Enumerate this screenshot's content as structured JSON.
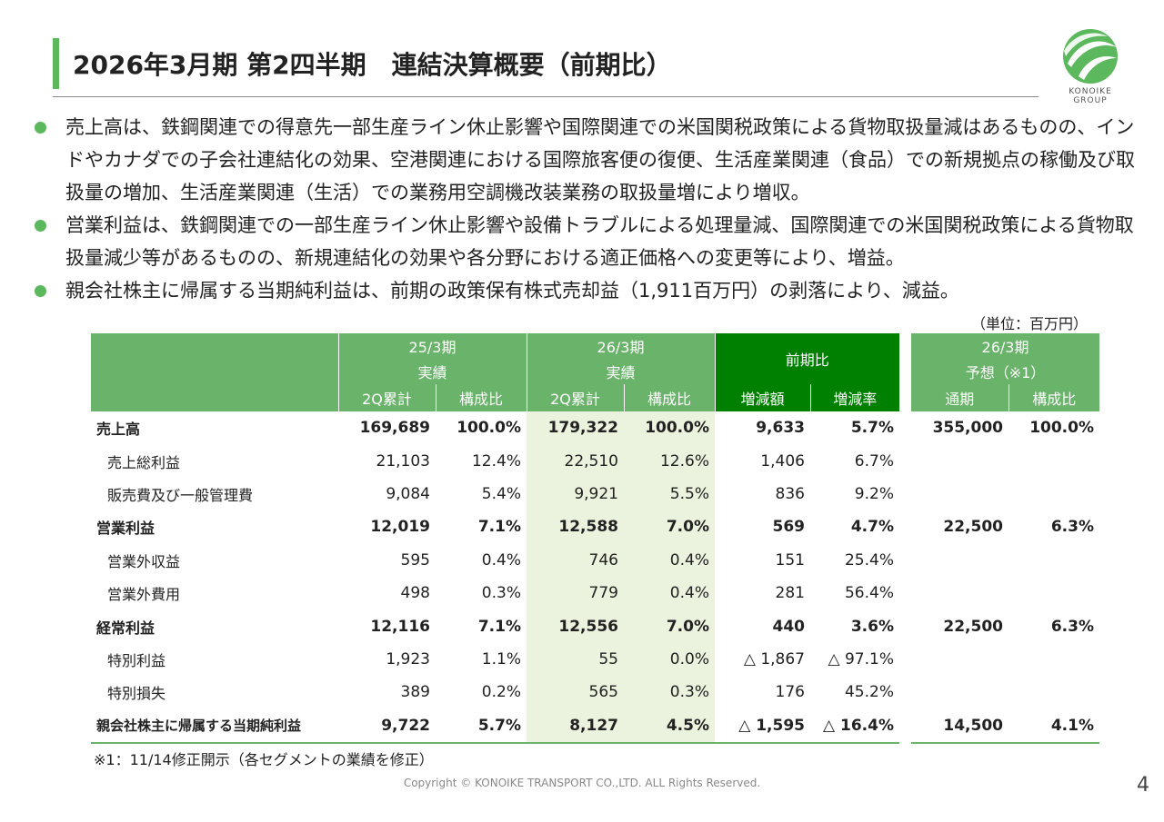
{
  "header": {
    "title": "2026年3月期 第2四半期　連結決算概要（前期比）",
    "logo_text": "KONOIKE GROUP"
  },
  "bullets": [
    "売上高は、鉄鋼関連での得意先一部生産ライン休止影響や国際関連での米国関税政策による貨物取扱量減はあるものの、インドやカナダでの子会社連結化の効果、空港関連における国際旅客便の復便、生活産業関連（食品）での新規拠点の稼働及び取扱量の増加、生活産業関連（生活）での業務用空調機改装業務の取扱量増により増収。",
    "営業利益は、鉄鋼関連での一部生産ライン休止影響や設備トラブルによる処理量減、国際関連での米国関税政策による貨物取扱量減少等があるものの、新規連結化の効果や各分野における適正価格への変更等により、増益。",
    "親会社株主に帰属する当期純利益は、前期の政策保有株式売却益（1,911百万円）の剥落により、減益。"
  ],
  "unit": "（単位：百万円）",
  "table": {
    "groups": {
      "g1_line1": "25/3期",
      "g1_line2": "実績",
      "g2_line1": "26/3期",
      "g2_line2": "実績",
      "g3": "前期比",
      "g4_line1": "26/3期",
      "g4_line2": "予想（※1）"
    },
    "subheaders": [
      "2Q累計",
      "構成比",
      "2Q累計",
      "構成比",
      "増減額",
      "増減率",
      "通期",
      "構成比"
    ],
    "rows": [
      {
        "label": "売上高",
        "bold": true,
        "v": [
          "169,689",
          "100.0%",
          "179,322",
          "100.0%",
          "9,633",
          "5.7%",
          "355,000",
          "100.0%"
        ]
      },
      {
        "label": "売上総利益",
        "bold": false,
        "v": [
          "21,103",
          "12.4%",
          "22,510",
          "12.6%",
          "1,406",
          "6.7%",
          "",
          ""
        ]
      },
      {
        "label": "販売費及び一般管理費",
        "bold": false,
        "v": [
          "9,084",
          "5.4%",
          "9,921",
          "5.5%",
          "836",
          "9.2%",
          "",
          ""
        ]
      },
      {
        "label": "営業利益",
        "bold": true,
        "v": [
          "12,019",
          "7.1%",
          "12,588",
          "7.0%",
          "569",
          "4.7%",
          "22,500",
          "6.3%"
        ]
      },
      {
        "label": "営業外収益",
        "bold": false,
        "v": [
          "595",
          "0.4%",
          "746",
          "0.4%",
          "151",
          "25.4%",
          "",
          ""
        ]
      },
      {
        "label": "営業外費用",
        "bold": false,
        "v": [
          "498",
          "0.3%",
          "779",
          "0.4%",
          "281",
          "56.4%",
          "",
          ""
        ]
      },
      {
        "label": "経常利益",
        "bold": true,
        "v": [
          "12,116",
          "7.1%",
          "12,556",
          "7.0%",
          "440",
          "3.6%",
          "22,500",
          "6.3%"
        ]
      },
      {
        "label": "特別利益",
        "bold": false,
        "v": [
          "1,923",
          "1.1%",
          "55",
          "0.0%",
          "△ 1,867",
          "△ 97.1%",
          "",
          ""
        ]
      },
      {
        "label": "特別損失",
        "bold": false,
        "v": [
          "389",
          "0.2%",
          "565",
          "0.3%",
          "176",
          "45.2%",
          "",
          ""
        ]
      },
      {
        "label": "親会社株主に帰属する当期純利益",
        "bold": true,
        "v": [
          "9,722",
          "5.7%",
          "8,127",
          "4.5%",
          "△ 1,595",
          "△ 16.4%",
          "14,500",
          "4.1%"
        ]
      }
    ]
  },
  "note": "※1：11/14修正開示（各セグメントの業績を修正）",
  "footer": {
    "copyright": "Copyright © KONOIKE TRANSPORT CO.,LTD.  ALL Rights Reserved.",
    "page_number": "4"
  },
  "colors": {
    "accent_green": "#5cb85c",
    "header_green": "#6ab36a",
    "header_dark_green": "#008000",
    "highlight_column": "#ebf2dd"
  }
}
